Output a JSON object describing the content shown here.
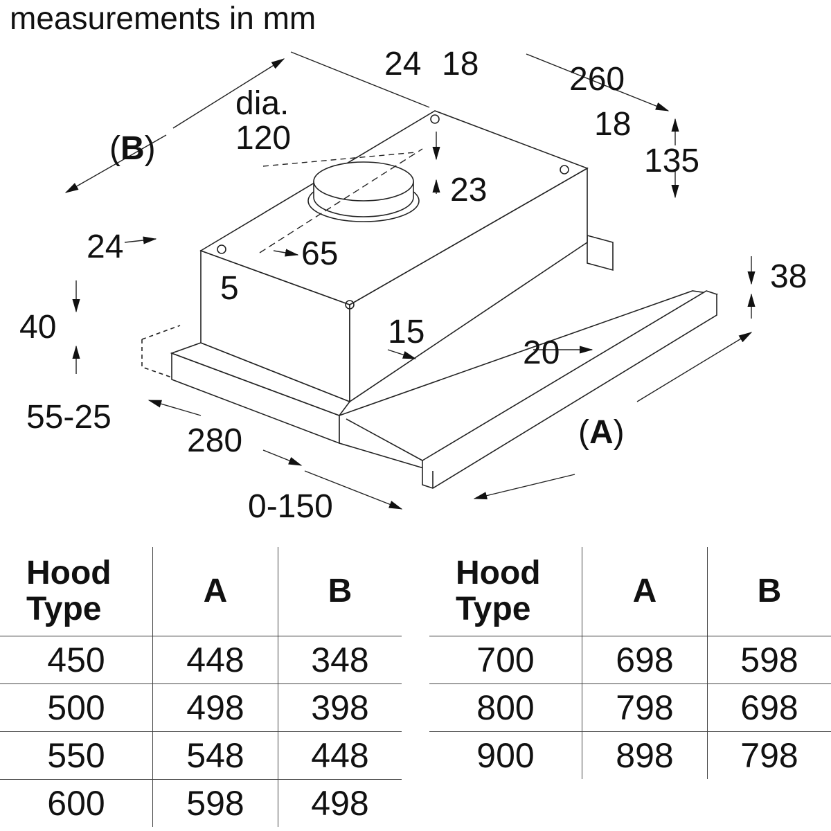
{
  "title": "measurements in mm",
  "diagram": {
    "labels": {
      "d24_top": "24",
      "d18_top": "18",
      "d260": "260",
      "dia": "dia.",
      "d120": "120",
      "B": "B",
      "d18_right": "18",
      "d135": "135",
      "d23": "23",
      "d24_left": "24",
      "d65": "65",
      "d5": "5",
      "d38": "38",
      "d40": "40",
      "d15": "15",
      "d20": "20",
      "d55_25": "55-25",
      "A": "A",
      "d280": "280",
      "d0_150": "0-150"
    }
  },
  "tables": [
    {
      "headers": [
        "Hood\nType",
        "A",
        "B"
      ],
      "rows": [
        [
          "450",
          "448",
          "348"
        ],
        [
          "500",
          "498",
          "398"
        ],
        [
          "550",
          "548",
          "448"
        ],
        [
          "600",
          "598",
          "498"
        ]
      ]
    },
    {
      "headers": [
        "Hood\nType",
        "A",
        "B"
      ],
      "rows": [
        [
          "700",
          "698",
          "598"
        ],
        [
          "800",
          "798",
          "698"
        ],
        [
          "900",
          "898",
          "798"
        ]
      ]
    }
  ]
}
